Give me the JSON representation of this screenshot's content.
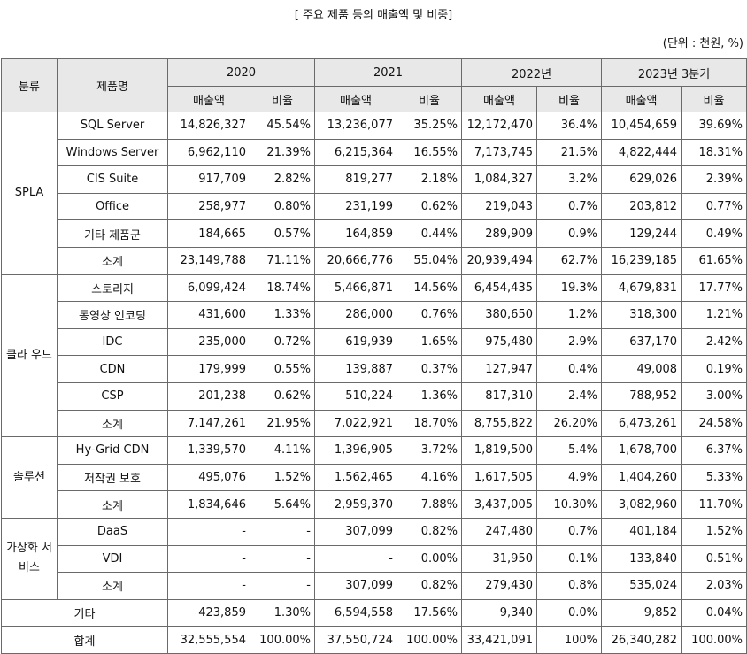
{
  "title": "[ 주요 제품 등의 매출액 및 비중]",
  "unit": "(단위 : 천원, %)",
  "headers": {
    "category": "분류",
    "product": "제품명",
    "years": [
      "2020",
      "2021",
      "2022년",
      "2023년 3분기"
    ],
    "sales": "매출액",
    "ratio": "비율"
  },
  "groups": [
    {
      "category": "SPLA",
      "rows": [
        {
          "name": "SQL Server",
          "values": [
            "14,826,327",
            "45.54%",
            "13,236,077",
            "35.25%",
            "12,172,470",
            "36.4%",
            "10,454,659",
            "39.69%"
          ]
        },
        {
          "name": "Windows Server",
          "values": [
            "6,962,110",
            "21.39%",
            "6,215,364",
            "16.55%",
            "7,173,745",
            "21.5%",
            "4,822,444",
            "18.31%"
          ]
        },
        {
          "name": "CIS Suite",
          "values": [
            "917,709",
            "2.82%",
            "819,277",
            "2.18%",
            "1,084,327",
            "3.2%",
            "629,026",
            "2.39%"
          ]
        },
        {
          "name": "Office",
          "values": [
            "258,977",
            "0.80%",
            "231,199",
            "0.62%",
            "219,043",
            "0.7%",
            "203,812",
            "0.77%"
          ]
        },
        {
          "name": "기타 제품군",
          "values": [
            "184,665",
            "0.57%",
            "164,859",
            "0.44%",
            "289,909",
            "0.9%",
            "129,244",
            "0.49%"
          ]
        },
        {
          "name": "소계",
          "values": [
            "23,149,788",
            "71.11%",
            "20,666,776",
            "55.04%",
            "20,939,494",
            "62.7%",
            "16,239,185",
            "61.65%"
          ]
        }
      ]
    },
    {
      "category": "클라 우드",
      "rows": [
        {
          "name": "스토리지",
          "values": [
            "6,099,424",
            "18.74%",
            "5,466,871",
            "14.56%",
            "6,454,435",
            "19.3%",
            "4,679,831",
            "17.77%"
          ]
        },
        {
          "name": "동영상 인코딩",
          "values": [
            "431,600",
            "1.33%",
            "286,000",
            "0.76%",
            "380,650",
            "1.2%",
            "318,300",
            "1.21%"
          ]
        },
        {
          "name": "IDC",
          "values": [
            "235,000",
            "0.72%",
            "619,939",
            "1.65%",
            "975,480",
            "2.9%",
            "637,170",
            "2.42%"
          ]
        },
        {
          "name": "CDN",
          "values": [
            "179,999",
            "0.55%",
            "139,887",
            "0.37%",
            "127,947",
            "0.4%",
            "49,008",
            "0.19%"
          ]
        },
        {
          "name": "CSP",
          "values": [
            "201,238",
            "0.62%",
            "510,224",
            "1.36%",
            "817,310",
            "2.4%",
            "788,952",
            "3.00%"
          ]
        },
        {
          "name": "소계",
          "values": [
            "7,147,261",
            "21.95%",
            "7,022,921",
            "18.70%",
            "8,755,822",
            "26.20%",
            "6,473,261",
            "24.58%"
          ]
        }
      ]
    },
    {
      "category": "솔루션",
      "rows": [
        {
          "name": "Hy-Grid CDN",
          "values": [
            "1,339,570",
            "4.11%",
            "1,396,905",
            "3.72%",
            "1,819,500",
            "5.4%",
            "1,678,700",
            "6.37%"
          ]
        },
        {
          "name": "저작권 보호",
          "values": [
            "495,076",
            "1.52%",
            "1,562,465",
            "4.16%",
            "1,617,505",
            "4.9%",
            "1,404,260",
            "5.33%"
          ]
        },
        {
          "name": "소계",
          "values": [
            "1,834,646",
            "5.64%",
            "2,959,370",
            "7.88%",
            "3,437,005",
            "10.30%",
            "3,082,960",
            "11.70%"
          ]
        }
      ]
    },
    {
      "category": "가상화 서비스",
      "rows": [
        {
          "name": "DaaS",
          "values": [
            "-",
            "-",
            "307,099",
            "0.82%",
            "247,480",
            "0.7%",
            "401,184",
            "1.52%"
          ]
        },
        {
          "name": "VDI",
          "values": [
            "-",
            "-",
            "-",
            "0.00%",
            "31,950",
            "0.1%",
            "133,840",
            "0.51%"
          ]
        },
        {
          "name": "소계",
          "values": [
            "-",
            "-",
            "307,099",
            "0.82%",
            "279,430",
            "0.8%",
            "535,024",
            "2.03%"
          ]
        }
      ]
    }
  ],
  "other": {
    "name": "기타",
    "values": [
      "423,859",
      "1.30%",
      "6,594,558",
      "17.56%",
      "9,340",
      "0.0%",
      "9,852",
      "0.04%"
    ]
  },
  "total": {
    "name": "합계",
    "values": [
      "32,555,554",
      "100.00%",
      "37,550,724",
      "100.00%",
      "33,421,091",
      "100%",
      "26,340,282",
      "100.00%"
    ]
  }
}
